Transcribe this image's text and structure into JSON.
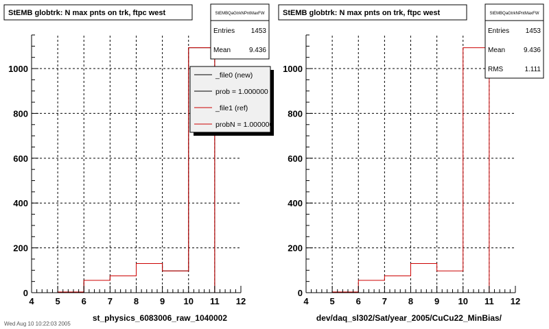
{
  "footer": "Wed Aug 10 10:22:03 2005",
  "chart_data": [
    {
      "type": "histogram",
      "title": "StEMB globtrk: N max pnts on trk, ftpc west",
      "xlabel": "st_physics_6083006_raw_1040002",
      "xlim": [
        4,
        12
      ],
      "ylim": [
        0,
        1150
      ],
      "xticks": [
        4,
        5,
        6,
        7,
        8,
        9,
        10,
        11,
        12
      ],
      "yticks": [
        0,
        200,
        400,
        600,
        800,
        1000
      ],
      "grid": true,
      "bin_edges": [
        4,
        5,
        6,
        7,
        8,
        9,
        10,
        11,
        12
      ],
      "series": [
        {
          "name": "_file0 (new)",
          "color": "#000000",
          "values": [
            0,
            3,
            55,
            75,
            130,
            97,
            1093,
            0
          ]
        },
        {
          "name": "_file1 (ref)",
          "color": "#cc0000",
          "values": [
            0,
            3,
            55,
            75,
            130,
            97,
            1093,
            0
          ]
        }
      ],
      "stats": {
        "name": "StEMBQaGtrkNPntMaxFW",
        "rows": [
          [
            "Entries",
            "1453"
          ],
          [
            "Mean",
            "9.436"
          ]
        ]
      },
      "legend": {
        "position": "top-right",
        "entries": [
          {
            "label": "_file0 (new)",
            "color": "#000000"
          },
          {
            "label": "prob = 1.000000",
            "color": "#000000"
          },
          {
            "label": "_file1 (ref)",
            "color": "#cc0000"
          },
          {
            "label": "probN = 1.000000",
            "color": "#cc0000"
          }
        ]
      }
    },
    {
      "type": "histogram",
      "title": "StEMB globtrk: N max pnts on trk, ftpc west",
      "xlabel": "dev/daq_sl302/Sat/year_2005/CuCu22_MinBias/",
      "xlim": [
        4,
        12
      ],
      "ylim": [
        0,
        1150
      ],
      "xticks": [
        4,
        5,
        6,
        7,
        8,
        9,
        10,
        11,
        12
      ],
      "yticks": [
        0,
        200,
        400,
        600,
        800,
        1000
      ],
      "grid": true,
      "bin_edges": [
        4,
        5,
        6,
        7,
        8,
        9,
        10,
        11,
        12
      ],
      "series": [
        {
          "name": "_file1 (ref)",
          "color": "#cc0000",
          "values": [
            0,
            3,
            55,
            75,
            130,
            97,
            1093,
            0
          ]
        }
      ],
      "stats": {
        "name": "StEMBQaGtrkNPntMaxFW",
        "rows": [
          [
            "Entries",
            "1453"
          ],
          [
            "Mean",
            "9.436"
          ],
          [
            "RMS",
            "1.111"
          ]
        ]
      }
    }
  ]
}
